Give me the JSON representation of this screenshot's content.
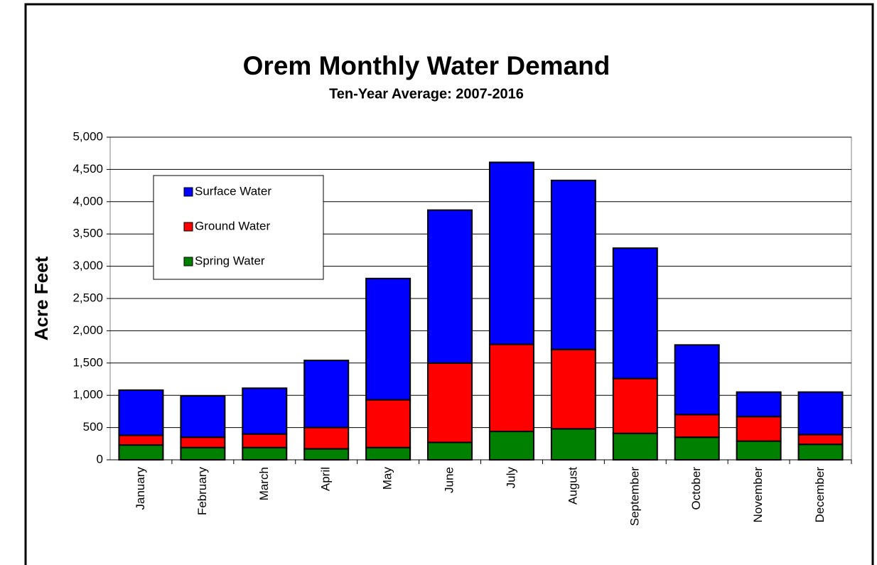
{
  "chart_data": {
    "type": "stacked_bar",
    "title": "Orem Monthly Water Demand",
    "subtitle": "Ten-Year Average: 2007-2016",
    "y_label": "Acre Feet",
    "categories": [
      "January",
      "February",
      "March",
      "April",
      "May",
      "June",
      "July",
      "August",
      "September",
      "October",
      "November",
      "December"
    ],
    "series": [
      {
        "name": "Spring Water",
        "color": "#008000",
        "values": [
          230,
          190,
          190,
          170,
          190,
          270,
          440,
          480,
          410,
          350,
          290,
          240
        ]
      },
      {
        "name": "Ground Water",
        "color": "#ff0000",
        "values": [
          150,
          160,
          210,
          330,
          740,
          1230,
          1350,
          1230,
          850,
          350,
          380,
          150
        ]
      },
      {
        "name": "Surface Water",
        "color": "#0000ff",
        "values": [
          700,
          640,
          710,
          1040,
          1880,
          2370,
          2820,
          2620,
          2020,
          1080,
          380,
          660
        ]
      }
    ],
    "ylim": [
      0,
      5000
    ],
    "yticks": [
      0,
      500,
      {
        "value": 1000,
        "label": "1,000"
      },
      {
        "value": 1500,
        "label": "1,500"
      },
      {
        "value": 2000,
        "label": "2,000"
      },
      {
        "value": 2500,
        "label": "2,500"
      },
      {
        "value": 3000,
        "label": "3,000"
      },
      {
        "value": 3500,
        "label": "3,500"
      },
      {
        "value": 4000,
        "label": "4,000"
      },
      {
        "value": 4500,
        "label": "4,500"
      },
      {
        "value": 5000,
        "label": "5,000"
      }
    ],
    "grid": true,
    "legend": "upper left"
  }
}
